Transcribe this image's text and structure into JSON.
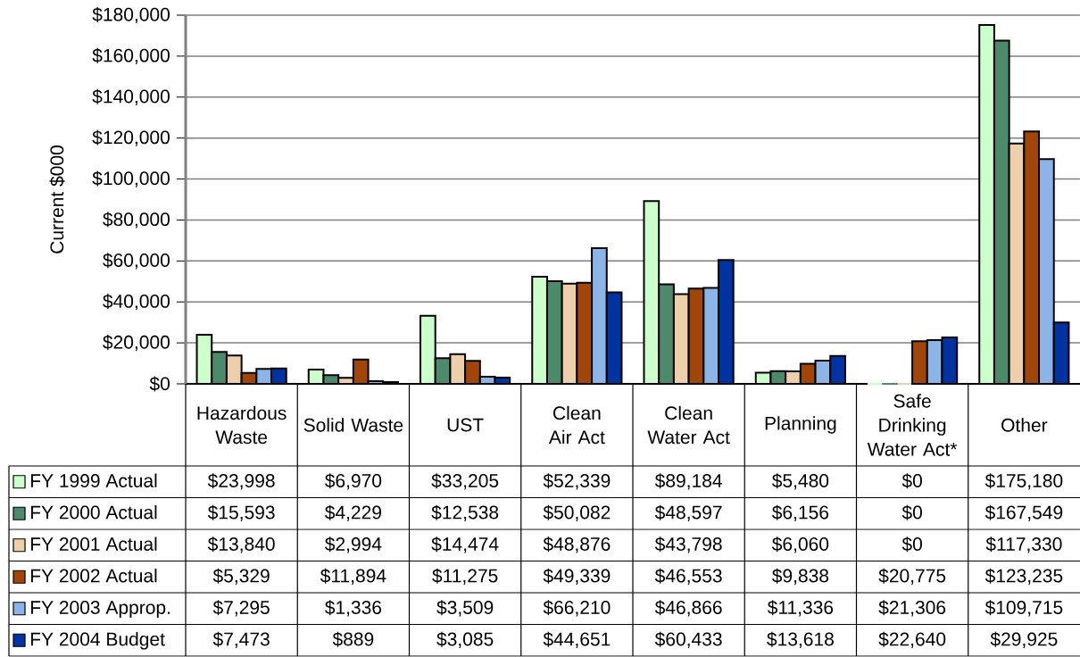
{
  "chart_data": {
    "type": "bar",
    "ylabel": "Current $000",
    "categories": [
      "Hazardous Waste",
      "Solid Waste",
      "UST",
      "Clean Air Act",
      "Clean Water Act",
      "Planning",
      "Safe Drinking Water Act*",
      "Other"
    ],
    "series": [
      {
        "name": "FY 1999 Actual",
        "color": "#ccffcc",
        "values": [
          23998,
          6970,
          33205,
          52339,
          89184,
          5480,
          0,
          175180
        ],
        "value_labels": [
          "$23,998",
          "$6,970",
          "$33,205",
          "$52,339",
          "$89,184",
          "$5,480",
          "$0",
          "$175,180"
        ]
      },
      {
        "name": "FY 2000 Actual",
        "color": "#4d8a6b",
        "values": [
          15593,
          4229,
          12538,
          50082,
          48597,
          6156,
          0,
          167549
        ],
        "value_labels": [
          "$15,593",
          "$4,229",
          "$12,538",
          "$50,082",
          "$48,597",
          "$6,156",
          "$0",
          "$167,549"
        ]
      },
      {
        "name": "FY 2001 Actual",
        "color": "#eecfac",
        "values": [
          13840,
          2994,
          14474,
          48876,
          43798,
          6060,
          0,
          117330
        ],
        "value_labels": [
          "$13,840",
          "$2,994",
          "$14,474",
          "$48,876",
          "$43,798",
          "$6,060",
          "$0",
          "$117,330"
        ]
      },
      {
        "name": "FY 2002 Actual",
        "color": "#a0460a",
        "values": [
          5329,
          11894,
          11275,
          49339,
          46553,
          9838,
          20775,
          123235
        ],
        "value_labels": [
          "$5,329",
          "$11,894",
          "$11,275",
          "$49,339",
          "$46,553",
          "$9,838",
          "$20,775",
          "$123,235"
        ]
      },
      {
        "name": "FY 2003 Approp.",
        "color": "#8cb4e6",
        "values": [
          7295,
          1336,
          3509,
          66210,
          46866,
          11336,
          21306,
          109715
        ],
        "value_labels": [
          "$7,295",
          "$1,336",
          "$3,509",
          "$66,210",
          "$46,866",
          "$11,336",
          "$21,306",
          "$109,715"
        ]
      },
      {
        "name": "FY 2004 Budget",
        "color": "#0033a0",
        "values": [
          7473,
          889,
          3085,
          44651,
          60433,
          13618,
          22640,
          29925
        ],
        "value_labels": [
          "$7,473",
          "$889",
          "$3,085",
          "$44,651",
          "$60,433",
          "$13,618",
          "$22,640",
          "$29,925"
        ]
      }
    ],
    "ylim": [
      0,
      180000
    ],
    "yticks": [
      {
        "value": 0,
        "label": "$0"
      },
      {
        "value": 20000,
        "label": "$20,000"
      },
      {
        "value": 40000,
        "label": "$40,000"
      },
      {
        "value": 60000,
        "label": "$60,000"
      },
      {
        "value": 80000,
        "label": "$80,000"
      },
      {
        "value": 100000,
        "label": "$100,000"
      },
      {
        "value": 120000,
        "label": "$120,000"
      },
      {
        "value": 140000,
        "label": "$140,000"
      },
      {
        "value": 160000,
        "label": "$160,000"
      },
      {
        "value": 180000,
        "label": "$180,000"
      }
    ],
    "grid": "y",
    "legend": "bottom left"
  }
}
